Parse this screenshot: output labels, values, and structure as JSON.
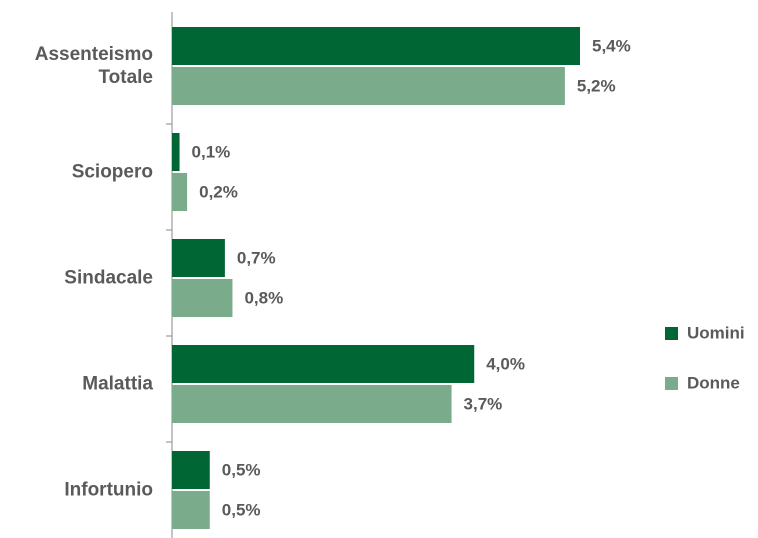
{
  "chart_data": {
    "type": "hbar",
    "categories": [
      "Assenteismo\nTotale",
      "Sciopero",
      "Sindacale",
      "Malattia",
      "Infortunio"
    ],
    "series": [
      {
        "name": "Uomini",
        "color": "#006633",
        "values": [
          5.4,
          0.1,
          0.7,
          4.0,
          0.5
        ],
        "value_labels": [
          "5,4%",
          "0,1%",
          "0,7%",
          "4,0%",
          "0,5%"
        ]
      },
      {
        "name": "Donne",
        "color": "#7aab8a",
        "values": [
          5.2,
          0.2,
          0.8,
          3.7,
          0.5
        ],
        "value_labels": [
          "5,2%",
          "0,2%",
          "0,8%",
          "3,7%",
          "0,5%"
        ]
      }
    ],
    "legend": "right"
  }
}
